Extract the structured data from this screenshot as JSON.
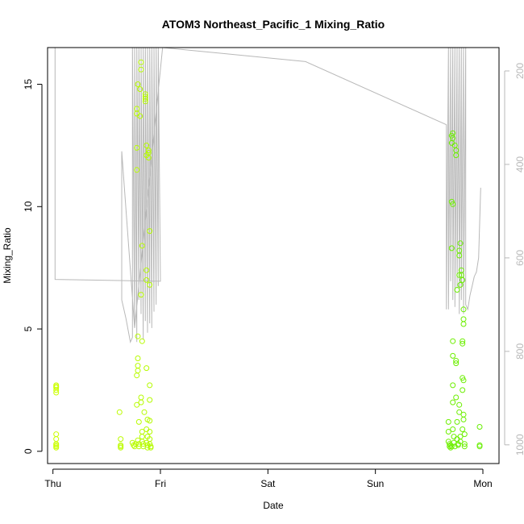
{
  "chart_data": {
    "type": "scatter",
    "title": "ATOM3 Northeast_Pacific_1 Mixing_Ratio",
    "xlabel": "Date",
    "ylabel": "Mixing_Ratio",
    "x_axis": {
      "unit": "days",
      "range": [
        -0.05,
        4.15
      ],
      "ticks": [
        {
          "value": 0,
          "label": "Thu"
        },
        {
          "value": 1,
          "label": "Fri"
        },
        {
          "value": 2,
          "label": "Sat"
        },
        {
          "value": 3,
          "label": "Sun"
        },
        {
          "value": 4,
          "label": "Mon"
        }
      ]
    },
    "y_axis": {
      "range": [
        -0.5,
        16.5
      ],
      "ticks": [
        0,
        5,
        10,
        15
      ]
    },
    "y2_axis": {
      "range_top": 150,
      "range_bottom": 1040,
      "ticks": [
        200,
        400,
        600,
        800,
        1000
      ],
      "color": "#b8b8b8"
    },
    "grid": false,
    "point_style": "open-circle",
    "color_start": "#ccff00",
    "color_end": "#66ee00",
    "points": [
      [
        0.03,
        2.7
      ],
      [
        0.03,
        2.6
      ],
      [
        0.03,
        2.5
      ],
      [
        0.03,
        2.4
      ],
      [
        0.03,
        2.65
      ],
      [
        0.03,
        0.7
      ],
      [
        0.03,
        0.5
      ],
      [
        0.03,
        0.3
      ],
      [
        0.03,
        0.2
      ],
      [
        0.03,
        0.15
      ],
      [
        0.03,
        0.25
      ],
      [
        0.62,
        1.6
      ],
      [
        0.63,
        0.5
      ],
      [
        0.63,
        0.25
      ],
      [
        0.63,
        0.2
      ],
      [
        0.63,
        0.15
      ],
      [
        0.74,
        0.35
      ],
      [
        0.75,
        0.25
      ],
      [
        0.76,
        0.2
      ],
      [
        0.77,
        0.3
      ],
      [
        0.78,
        3.1
      ],
      [
        0.78,
        1.9
      ],
      [
        0.78,
        12.4
      ],
      [
        0.78,
        11.5
      ],
      [
        0.78,
        13.8
      ],
      [
        0.78,
        14.0
      ],
      [
        0.79,
        15.0
      ],
      [
        0.79,
        3.8
      ],
      [
        0.79,
        3.5
      ],
      [
        0.79,
        3.3
      ],
      [
        0.79,
        4.7
      ],
      [
        0.79,
        0.45
      ],
      [
        0.8,
        0.3
      ],
      [
        0.8,
        1.2
      ],
      [
        0.8,
        0.2
      ],
      [
        0.81,
        13.7
      ],
      [
        0.81,
        14.8
      ],
      [
        0.82,
        15.6
      ],
      [
        0.82,
        15.9
      ],
      [
        0.82,
        6.4
      ],
      [
        0.82,
        2.2
      ],
      [
        0.82,
        2.0
      ],
      [
        0.83,
        8.4
      ],
      [
        0.83,
        4.5
      ],
      [
        0.83,
        0.8
      ],
      [
        0.83,
        0.6
      ],
      [
        0.83,
        0.4
      ],
      [
        0.84,
        0.3
      ],
      [
        0.84,
        0.2
      ],
      [
        0.85,
        1.6
      ],
      [
        0.86,
        14.5
      ],
      [
        0.86,
        14.3
      ],
      [
        0.86,
        14.6
      ],
      [
        0.86,
        14.4
      ],
      [
        0.87,
        12.5
      ],
      [
        0.87,
        12.1
      ],
      [
        0.87,
        7.4
      ],
      [
        0.87,
        7.0
      ],
      [
        0.87,
        3.4
      ],
      [
        0.87,
        0.9
      ],
      [
        0.87,
        0.35
      ],
      [
        0.88,
        0.25
      ],
      [
        0.88,
        1.3
      ],
      [
        0.88,
        0.6
      ],
      [
        0.88,
        0.15
      ],
      [
        0.89,
        12.2
      ],
      [
        0.89,
        12.3
      ],
      [
        0.89,
        12.0
      ],
      [
        0.9,
        9.0
      ],
      [
        0.9,
        6.8
      ],
      [
        0.9,
        2.7
      ],
      [
        0.9,
        2.1
      ],
      [
        0.9,
        1.25
      ],
      [
        0.9,
        0.8
      ],
      [
        0.9,
        0.5
      ],
      [
        0.9,
        0.3
      ],
      [
        0.91,
        0.2
      ],
      [
        0.91,
        0.15
      ],
      [
        3.68,
        1.2
      ],
      [
        3.68,
        0.8
      ],
      [
        3.68,
        0.4
      ],
      [
        3.69,
        0.3
      ],
      [
        3.69,
        0.2
      ],
      [
        3.7,
        0.15
      ],
      [
        3.7,
        0.25
      ],
      [
        3.71,
        0.2
      ],
      [
        3.71,
        12.9
      ],
      [
        3.71,
        12.6
      ],
      [
        3.71,
        10.2
      ],
      [
        3.71,
        8.3
      ],
      [
        3.72,
        10.1
      ],
      [
        3.72,
        13.0
      ],
      [
        3.72,
        12.8
      ],
      [
        3.72,
        4.5
      ],
      [
        3.72,
        3.9
      ],
      [
        3.72,
        2.7
      ],
      [
        3.72,
        2.0
      ],
      [
        3.72,
        0.9
      ],
      [
        3.73,
        0.6
      ],
      [
        3.73,
        0.35
      ],
      [
        3.74,
        0.2
      ],
      [
        3.74,
        12.5
      ],
      [
        3.75,
        12.3
      ],
      [
        3.75,
        12.1
      ],
      [
        3.75,
        3.7
      ],
      [
        3.75,
        3.6
      ],
      [
        3.75,
        2.2
      ],
      [
        3.76,
        6.6
      ],
      [
        3.76,
        1.2
      ],
      [
        3.76,
        0.5
      ],
      [
        3.77,
        0.3
      ],
      [
        3.77,
        0.25
      ],
      [
        3.78,
        8.2
      ],
      [
        3.78,
        8.0
      ],
      [
        3.78,
        7.2
      ],
      [
        3.78,
        1.9
      ],
      [
        3.78,
        1.6
      ],
      [
        3.79,
        8.5
      ],
      [
        3.79,
        6.8
      ],
      [
        3.79,
        0.6
      ],
      [
        3.79,
        0.4
      ],
      [
        3.8,
        7.4
      ],
      [
        3.8,
        7.2
      ],
      [
        3.81,
        7.0
      ],
      [
        3.81,
        4.4
      ],
      [
        3.81,
        4.5
      ],
      [
        3.81,
        3.0
      ],
      [
        3.81,
        2.5
      ],
      [
        3.82,
        5.8
      ],
      [
        3.82,
        5.4
      ],
      [
        3.82,
        5.2
      ],
      [
        3.82,
        2.9
      ],
      [
        3.82,
        1.5
      ],
      [
        3.83,
        0.7
      ],
      [
        3.83,
        0.3
      ],
      [
        3.83,
        0.2
      ],
      [
        3.82,
        1.3
      ],
      [
        3.81,
        0.9
      ],
      [
        3.97,
        1.0
      ],
      [
        3.97,
        0.25
      ],
      [
        3.97,
        0.2
      ]
    ],
    "altitude_line": [
      [
        0.02,
        150
      ],
      [
        0.02,
        646
      ],
      [
        1.0,
        650
      ],
      [
        0.98,
        150
      ],
      [
        0.98,
        660
      ],
      [
        0.96,
        150
      ],
      [
        0.96,
        700
      ],
      [
        0.94,
        150
      ],
      [
        0.94,
        715
      ],
      [
        0.92,
        150
      ],
      [
        0.92,
        750
      ],
      [
        0.9,
        150
      ],
      [
        0.9,
        740
      ],
      [
        0.88,
        150
      ],
      [
        0.88,
        760
      ],
      [
        0.86,
        150
      ],
      [
        0.86,
        735
      ],
      [
        0.84,
        150
      ],
      [
        0.84,
        775
      ],
      [
        0.82,
        150
      ],
      [
        0.82,
        720
      ],
      [
        0.8,
        150
      ],
      [
        0.8,
        690
      ],
      [
        0.78,
        150
      ],
      [
        0.78,
        780
      ],
      [
        0.76,
        150
      ],
      [
        0.76,
        750
      ],
      [
        0.74,
        150
      ],
      [
        0.74,
        770
      ],
      [
        0.72,
        780
      ],
      [
        0.7,
        755
      ],
      [
        0.68,
        730
      ],
      [
        0.66,
        710
      ],
      [
        0.64,
        690
      ],
      [
        0.64,
        372
      ],
      [
        0.76,
        750
      ],
      [
        1.02,
        150
      ],
      [
        2.35,
        180
      ],
      [
        3.66,
        315
      ],
      [
        3.66,
        710
      ],
      [
        3.68,
        150
      ],
      [
        3.68,
        710
      ],
      [
        3.7,
        150
      ],
      [
        3.7,
        650
      ],
      [
        3.72,
        150
      ],
      [
        3.72,
        690
      ],
      [
        3.74,
        150
      ],
      [
        3.74,
        705
      ],
      [
        3.76,
        150
      ],
      [
        3.76,
        665
      ],
      [
        3.78,
        150
      ],
      [
        3.78,
        720
      ],
      [
        3.8,
        150
      ],
      [
        3.8,
        690
      ],
      [
        3.82,
        150
      ],
      [
        3.82,
        720
      ],
      [
        3.84,
        150
      ],
      [
        3.84,
        700
      ],
      [
        3.86,
        710
      ],
      [
        3.88,
        680
      ],
      [
        3.9,
        660
      ],
      [
        3.92,
        640
      ],
      [
        3.94,
        630
      ],
      [
        3.96,
        600
      ],
      [
        3.98,
        450
      ]
    ]
  }
}
